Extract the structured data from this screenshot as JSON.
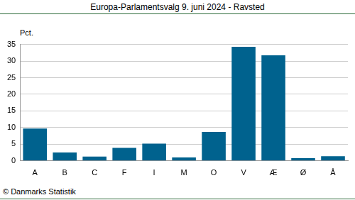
{
  "chart_data": {
    "type": "bar",
    "title": "Europa-Parlamentsvalg 9. juni 2024 - Ravsted",
    "ylabel": "Pct.",
    "source": "© Danmarks Statistik",
    "categories": [
      "A",
      "B",
      "C",
      "F",
      "I",
      "M",
      "O",
      "V",
      "Æ",
      "Ø",
      "Å"
    ],
    "values": [
      9.7,
      2.5,
      1.3,
      3.9,
      5.2,
      1.0,
      8.7,
      34.3,
      31.7,
      0.8,
      1.4
    ],
    "color": "#00628e",
    "ylim": [
      0,
      35
    ],
    "yticks": [
      0,
      5,
      10,
      15,
      20,
      25,
      30,
      35
    ],
    "grid": true
  }
}
